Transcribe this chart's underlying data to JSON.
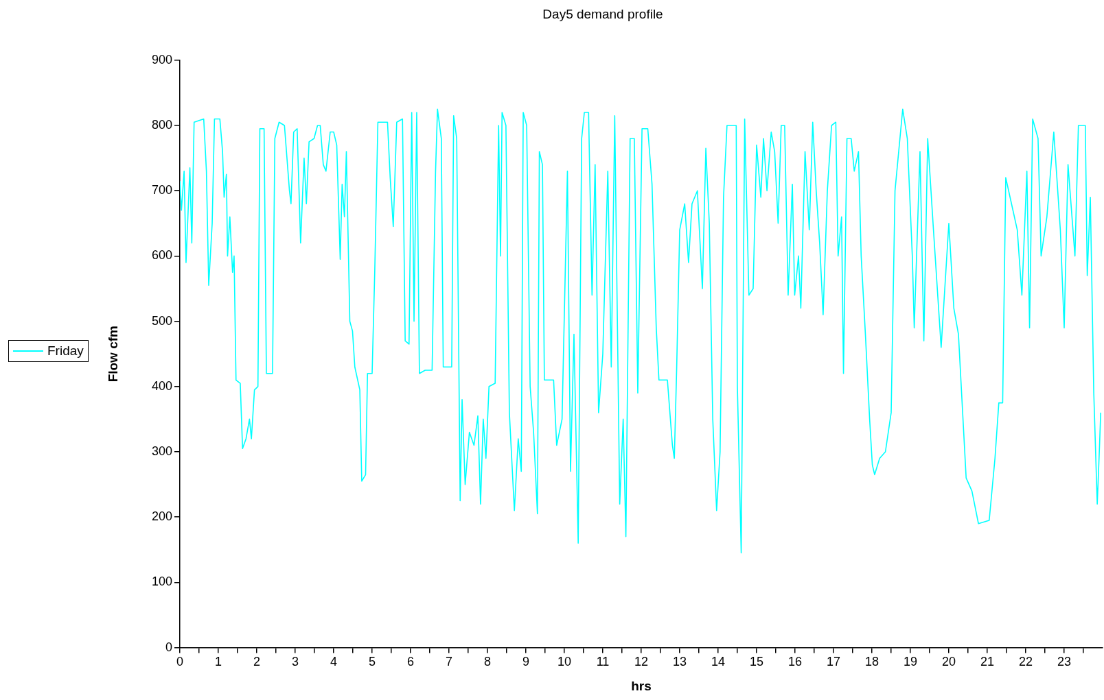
{
  "chart_data": {
    "type": "line",
    "title": "Day5 demand profile",
    "xlabel": "hrs",
    "ylabel": "Flow cfm",
    "legend": "left",
    "grid": false,
    "marker": "none",
    "line_style": "solid",
    "xlim": [
      0,
      24
    ],
    "xticks": [
      0,
      {
        "value": 0.5,
        "label": null
      },
      1,
      {
        "value": 1.5,
        "label": null
      },
      2,
      {
        "value": 2.5,
        "label": null
      },
      3,
      {
        "value": 3.5,
        "label": null
      },
      4,
      {
        "value": 4.5,
        "label": null
      },
      5,
      {
        "value": 5.5,
        "label": null
      },
      6,
      {
        "value": 6.5,
        "label": null
      },
      7,
      {
        "value": 7.5,
        "label": null
      },
      8,
      {
        "value": 8.5,
        "label": null
      },
      9,
      {
        "value": 9.5,
        "label": null
      },
      10,
      {
        "value": 10.5,
        "label": null
      },
      11,
      {
        "value": 11.5,
        "label": null
      },
      12,
      {
        "value": 12.5,
        "label": null
      },
      13,
      {
        "value": 13.5,
        "label": null
      },
      14,
      {
        "value": 14.5,
        "label": null
      },
      15,
      {
        "value": 15.5,
        "label": null
      },
      16,
      {
        "value": 16.5,
        "label": null
      },
      17,
      {
        "value": 17.5,
        "label": null
      },
      18,
      {
        "value": 18.5,
        "label": null
      },
      19,
      {
        "value": 19.5,
        "label": null
      },
      20,
      {
        "value": 20.5,
        "label": null
      },
      21,
      {
        "value": 21.5,
        "label": null
      },
      22,
      {
        "value": 22.5,
        "label": null
      },
      23,
      {
        "value": 23.5,
        "label": null
      }
    ],
    "ylim": [
      0,
      900
    ],
    "yticks": [
      0,
      100,
      200,
      300,
      400,
      500,
      600,
      700,
      800,
      900
    ],
    "x": [
      0,
      0.04,
      0.11,
      0.16,
      0.26,
      0.31,
      0.37,
      0.62,
      0.69,
      0.75,
      0.84,
      0.9,
      1.04,
      1.11,
      1.15,
      1.21,
      1.24,
      1.3,
      1.37,
      1.41,
      1.46,
      1.57,
      1.63,
      1.72,
      1.81,
      1.86,
      1.94,
      2.03,
      2.08,
      2.19,
      2.25,
      2.41,
      2.47,
      2.58,
      2.72,
      2.85,
      2.89,
      2.96,
      3.05,
      3.14,
      3.23,
      3.29,
      3.36,
      3.49,
      3.58,
      3.65,
      3.73,
      3.8,
      3.91,
      4.0,
      4.08,
      4.17,
      4.22,
      4.28,
      4.33,
      4.42,
      4.49,
      4.55,
      4.68,
      4.73,
      4.83,
      4.88,
      5.0,
      5.07,
      5.15,
      5.4,
      5.47,
      5.55,
      5.64,
      5.79,
      5.86,
      5.96,
      6.03,
      6.09,
      6.16,
      6.23,
      6.38,
      6.56,
      6.65,
      6.7,
      6.8,
      6.85,
      7.07,
      7.12,
      7.2,
      7.29,
      7.34,
      7.42,
      7.53,
      7.65,
      7.75,
      7.82,
      7.89,
      7.96,
      8.04,
      8.2,
      8.29,
      8.34,
      8.38,
      8.48,
      8.57,
      8.7,
      8.8,
      8.88,
      8.93,
      9.02,
      9.11,
      9.2,
      9.3,
      9.35,
      9.43,
      9.48,
      9.72,
      9.8,
      9.94,
      10.08,
      10.16,
      10.25,
      10.36,
      10.45,
      10.52,
      10.63,
      10.72,
      10.8,
      10.89,
      11.0,
      11.13,
      11.22,
      11.31,
      11.44,
      11.53,
      11.6,
      11.71,
      11.82,
      11.91,
      12.02,
      12.17,
      12.28,
      12.39,
      12.46,
      12.68,
      12.81,
      12.86,
      12.92,
      13.0,
      13.13,
      13.23,
      13.32,
      13.46,
      13.59,
      13.68,
      13.77,
      13.86,
      13.96,
      14.05,
      14.14,
      14.23,
      14.47,
      14.5,
      14.6,
      14.69,
      14.8,
      14.91,
      15.0,
      15.11,
      15.18,
      15.27,
      15.38,
      15.47,
      15.56,
      15.64,
      15.73,
      15.82,
      15.93,
      15.99,
      16.09,
      16.15,
      16.26,
      16.37,
      16.46,
      16.55,
      16.64,
      16.73,
      16.84,
      16.95,
      17.06,
      17.12,
      17.21,
      17.26,
      17.35,
      17.46,
      17.54,
      17.65,
      17.72,
      17.83,
      17.94,
      18.01,
      18.07,
      18.2,
      18.35,
      18.5,
      18.6,
      18.8,
      18.92,
      19.05,
      19.1,
      19.25,
      19.35,
      19.45,
      19.6,
      19.8,
      20.0,
      20.13,
      20.25,
      20.45,
      20.6,
      20.77,
      21.05,
      21.2,
      21.3,
      21.4,
      21.48,
      21.63,
      21.78,
      21.9,
      22.03,
      22.1,
      22.18,
      22.32,
      22.4,
      22.55,
      22.73,
      22.9,
      23.0,
      23.1,
      23.28,
      23.37,
      23.55,
      23.6,
      23.68,
      23.77,
      23.86,
      23.92,
      23.95
    ],
    "series": [
      {
        "name": "Friday",
        "color": "#00ffff",
        "values": [
          715,
          670,
          730,
          590,
          735,
          620,
          805,
          810,
          730,
          555,
          650,
          810,
          810,
          760,
          690,
          725,
          600,
          660,
          575,
          600,
          410,
          405,
          305,
          320,
          350,
          320,
          395,
          400,
          795,
          795,
          420,
          420,
          780,
          805,
          800,
          700,
          680,
          790,
          795,
          620,
          750,
          680,
          775,
          780,
          800,
          800,
          740,
          730,
          790,
          790,
          770,
          595,
          710,
          660,
          760,
          500,
          485,
          430,
          395,
          255,
          265,
          420,
          420,
          580,
          805,
          805,
          720,
          645,
          805,
          810,
          470,
          465,
          820,
          500,
          820,
          420,
          425,
          425,
          730,
          825,
          780,
          430,
          430,
          815,
          780,
          225,
          380,
          250,
          330,
          310,
          355,
          220,
          350,
          290,
          400,
          405,
          800,
          600,
          820,
          800,
          360,
          210,
          320,
          270,
          820,
          800,
          400,
          330,
          205,
          760,
          740,
          410,
          410,
          310,
          350,
          730,
          270,
          480,
          160,
          780,
          820,
          820,
          540,
          740,
          360,
          450,
          730,
          430,
          815,
          220,
          350,
          170,
          780,
          780,
          390,
          795,
          795,
          710,
          490,
          410,
          410,
          310,
          290,
          425,
          640,
          680,
          590,
          680,
          700,
          550,
          765,
          650,
          350,
          210,
          300,
          690,
          800,
          800,
          400,
          145,
          810,
          540,
          550,
          770,
          690,
          780,
          700,
          790,
          760,
          650,
          800,
          800,
          540,
          710,
          540,
          600,
          520,
          760,
          640,
          805,
          700,
          620,
          510,
          700,
          800,
          805,
          600,
          660,
          420,
          780,
          780,
          730,
          760,
          600,
          480,
          350,
          280,
          265,
          290,
          300,
          360,
          700,
          825,
          780,
          600,
          490,
          760,
          470,
          780,
          640,
          460,
          650,
          520,
          480,
          260,
          240,
          190,
          195,
          290,
          375,
          375,
          720,
          680,
          640,
          540,
          730,
          490,
          810,
          780,
          600,
          660,
          790,
          640,
          490,
          740,
          600,
          800,
          800,
          570,
          690,
          390,
          220,
          310,
          360
        ]
      }
    ]
  }
}
